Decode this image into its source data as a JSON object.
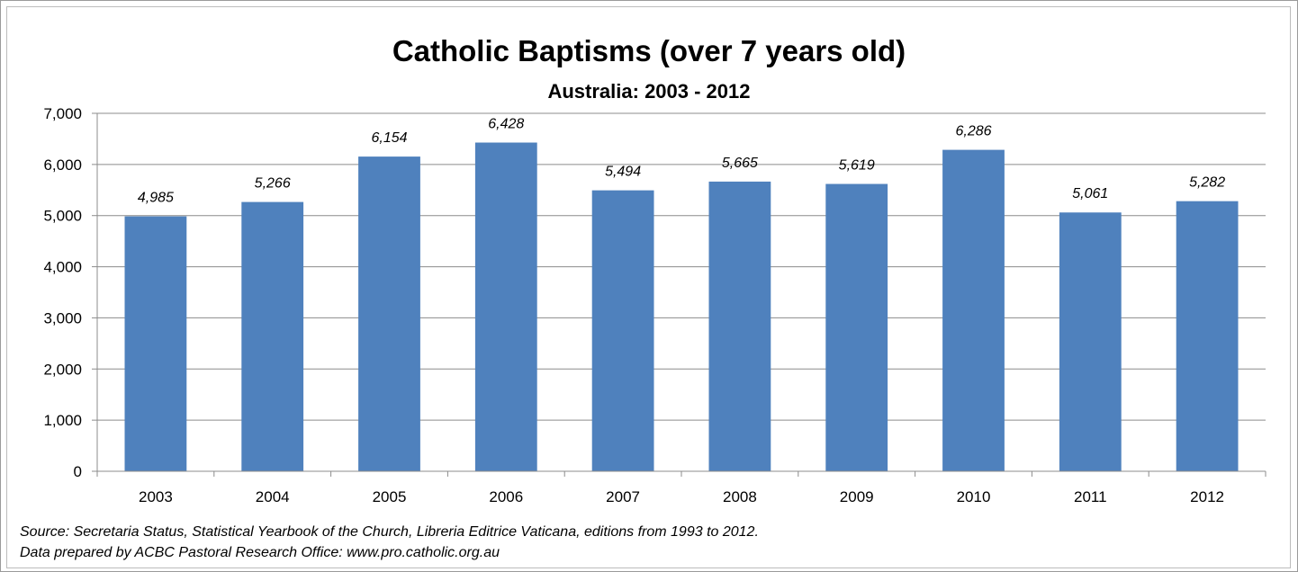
{
  "chart_data": {
    "type": "bar",
    "title": "Catholic Baptisms (over 7 years old)",
    "subtitle": "Australia: 2003 - 2012",
    "categories": [
      "2003",
      "2004",
      "2005",
      "2006",
      "2007",
      "2008",
      "2009",
      "2010",
      "2011",
      "2012"
    ],
    "values": [
      4985,
      5266,
      6154,
      6428,
      5494,
      5665,
      5619,
      6286,
      5061,
      5282
    ],
    "data_labels": [
      "4,985",
      "5,266",
      "6,154",
      "6,428",
      "5,494",
      "5,665",
      "5,619",
      "6,286",
      "5,061",
      "5,282"
    ],
    "ylim": [
      0,
      7000
    ],
    "yticks": [
      0,
      1000,
      2000,
      3000,
      4000,
      5000,
      6000,
      7000
    ],
    "ytick_labels": [
      "0",
      "1,000",
      "2,000",
      "3,000",
      "4,000",
      "5,000",
      "6,000",
      "7,000"
    ],
    "xlabel": "",
    "ylabel": "",
    "grid": true,
    "legend": "none",
    "bar_color": "#4F81BD"
  },
  "source_note": {
    "line1": "Source: Secretaria Status, Statistical Yearbook of the Church, Libreria Editrice Vaticana, editions from 1993 to 2012.",
    "line2": "Data prepared by ACBC Pastoral Research Office: www.pro.catholic.org.au"
  }
}
